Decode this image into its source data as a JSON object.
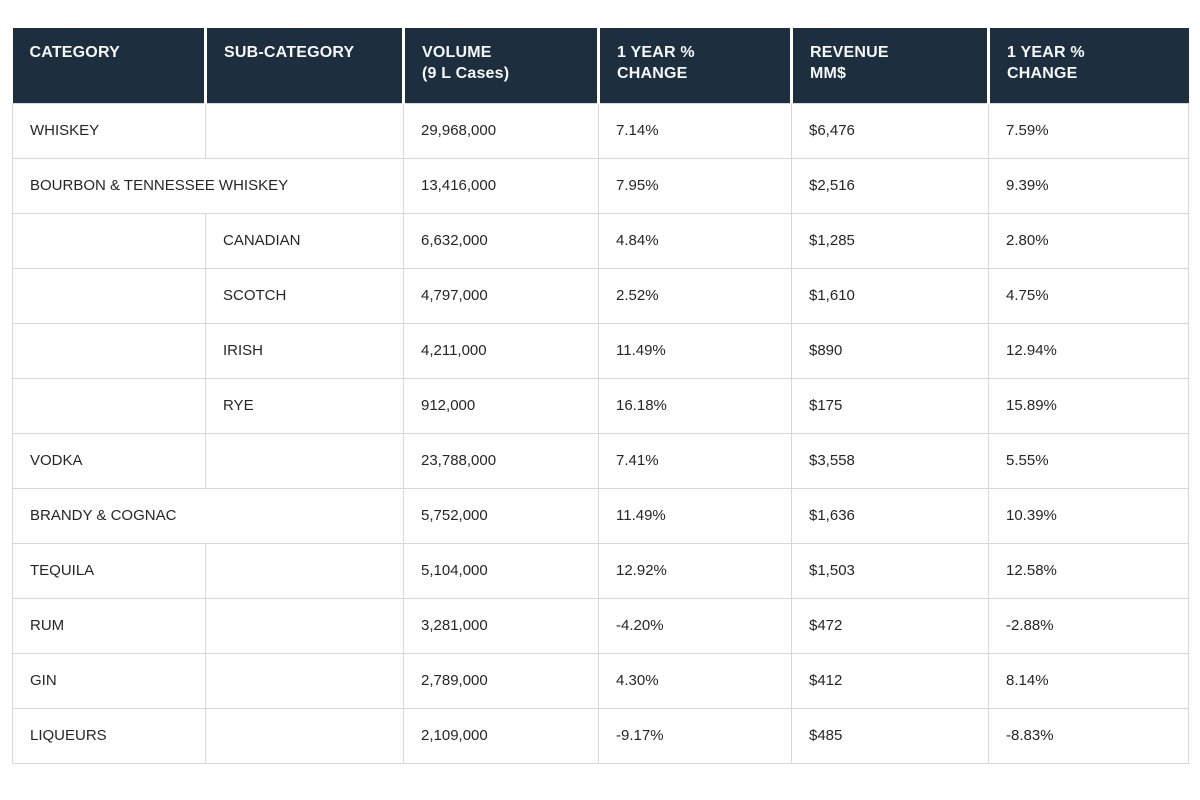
{
  "table": {
    "columns": [
      {
        "line1": "CATEGORY",
        "line2": ""
      },
      {
        "line1": "SUB-CATEGORY",
        "line2": ""
      },
      {
        "line1": "VOLUME",
        "line2": "(9 L Cases)"
      },
      {
        "line1": "1 YEAR %",
        "line2": "CHANGE"
      },
      {
        "line1": "REVENUE",
        "line2": "MM$"
      },
      {
        "line1": "1 YEAR %",
        "line2": "CHANGE"
      }
    ],
    "rows": [
      {
        "category": "WHISKEY",
        "subcategory": "",
        "span": false,
        "volume": "29,968,000",
        "volume_change": "7.14%",
        "revenue": "$6,476",
        "revenue_change": "7.59%"
      },
      {
        "category": "BOURBON & TENNESSEE WHISKEY",
        "subcategory": "",
        "span": true,
        "volume": "13,416,000",
        "volume_change": "7.95%",
        "revenue": "$2,516",
        "revenue_change": "9.39%"
      },
      {
        "category": "",
        "subcategory": "CANADIAN",
        "span": false,
        "volume": "6,632,000",
        "volume_change": "4.84%",
        "revenue": "$1,285",
        "revenue_change": "2.80%"
      },
      {
        "category": "",
        "subcategory": "SCOTCH",
        "span": false,
        "volume": "4,797,000",
        "volume_change": "2.52%",
        "revenue": "$1,610",
        "revenue_change": "4.75%"
      },
      {
        "category": "",
        "subcategory": "IRISH",
        "span": false,
        "volume": "4,211,000",
        "volume_change": "11.49%",
        "revenue": "$890",
        "revenue_change": "12.94%"
      },
      {
        "category": "",
        "subcategory": "RYE",
        "span": false,
        "volume": "912,000",
        "volume_change": "16.18%",
        "revenue": "$175",
        "revenue_change": "15.89%"
      },
      {
        "category": "VODKA",
        "subcategory": "",
        "span": false,
        "volume": "23,788,000",
        "volume_change": "7.41%",
        "revenue": "$3,558",
        "revenue_change": "5.55%"
      },
      {
        "category": "BRANDY & COGNAC",
        "subcategory": "",
        "span": true,
        "volume": "5,752,000",
        "volume_change": "11.49%",
        "revenue": "$1,636",
        "revenue_change": "10.39%"
      },
      {
        "category": "TEQUILA",
        "subcategory": "",
        "span": false,
        "volume": "5,104,000",
        "volume_change": "12.92%",
        "revenue": "$1,503",
        "revenue_change": "12.58%"
      },
      {
        "category": "RUM",
        "subcategory": "",
        "span": false,
        "volume": "3,281,000",
        "volume_change": "-4.20%",
        "revenue": "$472",
        "revenue_change": "-2.88%"
      },
      {
        "category": "GIN",
        "subcategory": "",
        "span": false,
        "volume": "2,789,000",
        "volume_change": "4.30%",
        "revenue": "$412",
        "revenue_change": "8.14%"
      },
      {
        "category": "LIQUEURS",
        "subcategory": "",
        "span": false,
        "volume": "2,109,000",
        "volume_change": "-9.17%",
        "revenue": "$485",
        "revenue_change": "-8.83%"
      }
    ]
  },
  "colors": {
    "header_bg": "#1d2f3e",
    "header_text": "#f5f7f9",
    "body_text": "#262626",
    "grid_border": "#d8d8d8",
    "page_bg": "#ffffff"
  }
}
